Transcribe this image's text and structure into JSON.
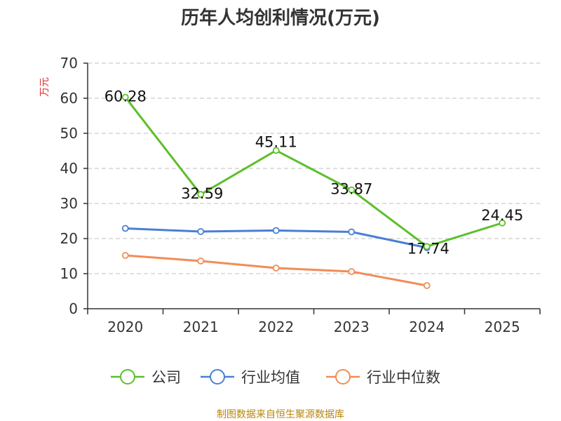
{
  "chart_data": {
    "type": "line",
    "title": "历年人均创利情况(万元)",
    "ylabel": "万元",
    "xlabel": "",
    "categories": [
      "2020",
      "2021",
      "2022",
      "2023",
      "2024",
      "2025"
    ],
    "ylim": [
      0,
      70
    ],
    "yticks": [
      0,
      10,
      20,
      30,
      40,
      50,
      60,
      70
    ],
    "grid": true,
    "legend_position": "bottom",
    "series": [
      {
        "name": "公司",
        "color": "#5cbf2a",
        "values": [
          60.28,
          32.59,
          45.11,
          33.87,
          17.74,
          24.45
        ],
        "labels": [
          "60.28",
          "32.59",
          "45.11",
          "33.87",
          "17.74",
          "24.45"
        ]
      },
      {
        "name": "行业均值",
        "color": "#4a7fd4",
        "values": [
          22.9,
          22.0,
          22.3,
          21.9,
          17.4,
          null
        ]
      },
      {
        "name": "行业中位数",
        "color": "#f28c58",
        "values": [
          15.2,
          13.6,
          11.6,
          10.6,
          6.6,
          null
        ]
      }
    ]
  },
  "footer": {
    "source": "制图数据来自恒生聚源数据库"
  }
}
